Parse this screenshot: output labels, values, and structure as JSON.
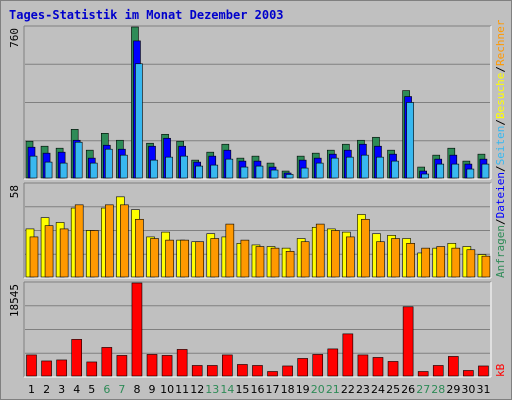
{
  "title": "Tages-Statistik im Monat Dezember 2003",
  "colors": {
    "background": "#C0C0C0",
    "title": "#0000CC",
    "anfragen": "#2E8B57",
    "dateien": "#0000FF",
    "seiten": "#38B8F0",
    "besuche": "#FFFF00",
    "rechner": "#FF9900",
    "kb": "#FF0000",
    "weekend_label": "#2E8B57",
    "weekday_label": "#000000"
  },
  "chart_data": [
    {
      "type": "bar",
      "panel": "top",
      "ymax_label": "760",
      "ylim": [
        0,
        760
      ],
      "categories": [
        "1",
        "2",
        "3",
        "4",
        "5",
        "6",
        "7",
        "8",
        "9",
        "10",
        "11",
        "12",
        "13",
        "14",
        "15",
        "16",
        "17",
        "18",
        "19",
        "20",
        "21",
        "22",
        "23",
        "24",
        "25",
        "26",
        "27",
        "28",
        "29",
        "30",
        "31"
      ],
      "series": [
        {
          "name": "Anfragen",
          "values": [
            185,
            160,
            150,
            245,
            140,
            225,
            190,
            760,
            175,
            220,
            185,
            90,
            130,
            170,
            100,
            110,
            75,
            35,
            110,
            125,
            140,
            170,
            190,
            205,
            140,
            440,
            55,
            115,
            150,
            85,
            120
          ]
        },
        {
          "name": "Dateien",
          "values": [
            155,
            125,
            130,
            190,
            100,
            165,
            145,
            690,
            160,
            200,
            160,
            80,
            110,
            140,
            85,
            85,
            55,
            25,
            90,
            100,
            120,
            140,
            170,
            160,
            120,
            410,
            35,
            95,
            115,
            70,
            95
          ]
        },
        {
          "name": "Seiten",
          "values": [
            110,
            80,
            75,
            180,
            75,
            145,
            115,
            575,
            90,
            105,
            110,
            60,
            65,
            95,
            55,
            60,
            40,
            18,
            50,
            75,
            100,
            105,
            115,
            105,
            85,
            380,
            20,
            70,
            70,
            45,
            70
          ]
        }
      ]
    },
    {
      "type": "bar",
      "panel": "middle",
      "ymax_label": "58",
      "ylim": [
        0,
        58
      ],
      "categories": [
        "1",
        "2",
        "3",
        "4",
        "5",
        "6",
        "7",
        "8",
        "9",
        "10",
        "11",
        "12",
        "13",
        "14",
        "15",
        "16",
        "17",
        "18",
        "19",
        "20",
        "21",
        "22",
        "23",
        "24",
        "25",
        "26",
        "27",
        "28",
        "29",
        "30",
        "31"
      ],
      "series": [
        {
          "name": "Besuche",
          "values": [
            30,
            37,
            34,
            43,
            29,
            43,
            50,
            42,
            25,
            28,
            23,
            22,
            27,
            25,
            21,
            20,
            19,
            18,
            24,
            31,
            30,
            28,
            39,
            27,
            26,
            24,
            15,
            18,
            21,
            19,
            14
          ]
        },
        {
          "name": "Rechner",
          "values": [
            25,
            32,
            30,
            45,
            29,
            45,
            45,
            36,
            24,
            23,
            23,
            22,
            24,
            33,
            23,
            19,
            18,
            16,
            22,
            33,
            29,
            25,
            36,
            22,
            24,
            21,
            18,
            19,
            18,
            17,
            13
          ]
        }
      ]
    },
    {
      "type": "bar",
      "panel": "bottom",
      "ymax_label": "18545",
      "ylim": [
        0,
        18545
      ],
      "categories": [
        "1",
        "2",
        "3",
        "4",
        "5",
        "6",
        "7",
        "8",
        "9",
        "10",
        "11",
        "12",
        "13",
        "14",
        "15",
        "16",
        "17",
        "18",
        "19",
        "20",
        "21",
        "22",
        "23",
        "24",
        "25",
        "26",
        "27",
        "28",
        "29",
        "30",
        "31"
      ],
      "series": [
        {
          "name": "kB",
          "values": [
            4200,
            3000,
            3200,
            7300,
            2800,
            5700,
            4100,
            18545,
            4300,
            4100,
            5300,
            2100,
            2100,
            4200,
            2300,
            2100,
            900,
            2000,
            3500,
            4300,
            5400,
            8400,
            4200,
            3700,
            2900,
            13800,
            900,
            2100,
            3900,
            1100,
            2000
          ]
        }
      ]
    }
  ],
  "right_labels": {
    "top": [
      "Anfragen",
      "/",
      "Dateien",
      "/",
      "Seiten",
      "/",
      "Besuche",
      "/",
      "Rechner"
    ],
    "bottom": "kB"
  },
  "weekend_days": [
    6,
    7,
    13,
    14,
    20,
    21,
    27,
    28
  ]
}
